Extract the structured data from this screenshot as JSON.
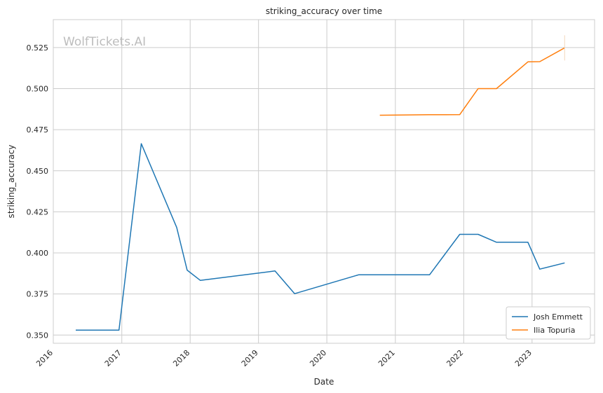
{
  "chart_data": {
    "type": "line",
    "title": "striking_accuracy over time",
    "xlabel": "Date",
    "ylabel": "striking_accuracy",
    "watermark": "WolfTickets.AI",
    "xlim": [
      "2016-01-01",
      "2023-12-01"
    ],
    "ylim": [
      0.345,
      0.542
    ],
    "x_ticks": [
      "2016",
      "2017",
      "2018",
      "2019",
      "2020",
      "2021",
      "2022",
      "2023"
    ],
    "y_ticks": [
      0.35,
      0.375,
      0.4,
      0.425,
      0.45,
      0.475,
      0.5,
      0.525
    ],
    "y_tick_labels": [
      "0.350",
      "0.375",
      "0.400",
      "0.425",
      "0.450",
      "0.475",
      "0.500",
      "0.525"
    ],
    "grid": true,
    "legend_position": "lower-right",
    "series": [
      {
        "name": "Josh Emmett",
        "color": "#1f77b4",
        "points": [
          {
            "x": "2016-04-30",
            "y": 0.353
          },
          {
            "x": "2016-12-17",
            "y": 0.353
          },
          {
            "x": "2017-04-15",
            "y": 0.4665
          },
          {
            "x": "2017-10-21",
            "y": 0.4155
          },
          {
            "x": "2017-12-16",
            "y": 0.3895
          },
          {
            "x": "2018-02-24",
            "y": 0.3833
          },
          {
            "x": "2019-03-30",
            "y": 0.389
          },
          {
            "x": "2019-07-13",
            "y": 0.3752
          },
          {
            "x": "2020-06-20",
            "y": 0.3867
          },
          {
            "x": "2021-07-03",
            "y": 0.3867
          },
          {
            "x": "2021-12-11",
            "y": 0.4113
          },
          {
            "x": "2022-03-19",
            "y": 0.4113
          },
          {
            "x": "2022-06-25",
            "y": 0.4065
          },
          {
            "x": "2022-12-10",
            "y": 0.4065
          },
          {
            "x": "2023-02-11",
            "y": 0.3901
          },
          {
            "x": "2023-06-24",
            "y": 0.3939
          }
        ]
      },
      {
        "name": "Ilia Topuria",
        "color": "#ff7f0e",
        "points": [
          {
            "x": "2020-10-10",
            "y": 0.4838
          },
          {
            "x": "2021-06-26",
            "y": 0.4841
          },
          {
            "x": "2021-12-11",
            "y": 0.4842
          },
          {
            "x": "2022-03-19",
            "y": 0.5
          },
          {
            "x": "2022-06-25",
            "y": 0.5
          },
          {
            "x": "2022-12-10",
            "y": 0.5163
          },
          {
            "x": "2023-02-11",
            "y": 0.5164
          },
          {
            "x": "2023-06-24",
            "y": 0.5248
          }
        ]
      }
    ]
  }
}
